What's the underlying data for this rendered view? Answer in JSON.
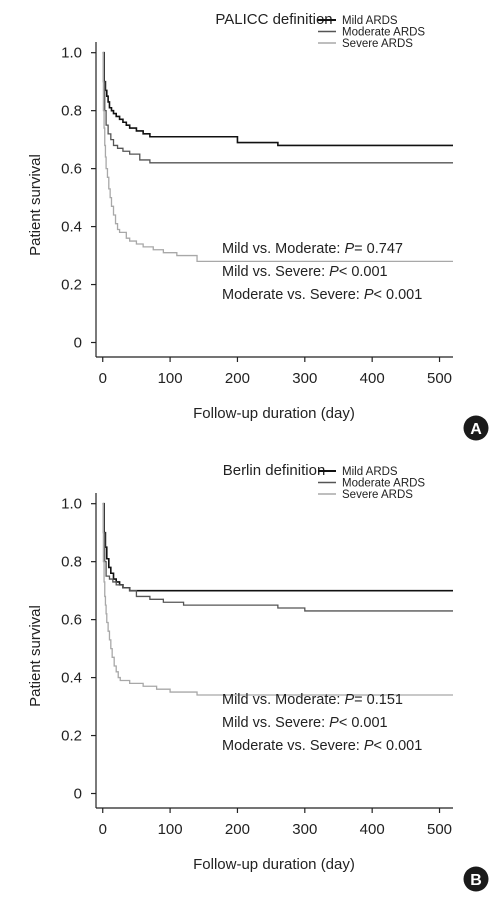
{
  "colors": {
    "mild": "#111111",
    "moderate": "#555555",
    "severe": "#a8a8a8",
    "axis": "#222222",
    "badge": "#1a1a1a"
  },
  "chart_data": [
    {
      "type": "line",
      "panel_label": "A",
      "title": "PALICC definition",
      "xlabel": "Follow-up duration (day)",
      "ylabel": "Patient survival",
      "xlim": [
        -10,
        520
      ],
      "ylim": [
        -0.05,
        1.03
      ],
      "xticks": [
        0,
        100,
        200,
        300,
        400,
        500
      ],
      "yticks": [
        0,
        0.2,
        0.4,
        0.6,
        0.8,
        1.0
      ],
      "xtick_labels": [
        "0",
        "100",
        "200",
        "300",
        "400",
        "500"
      ],
      "ytick_labels": [
        "0",
        "0.2",
        "0.4",
        "0.6",
        "0.8",
        "1.0"
      ],
      "grid": false,
      "legend_position": "top-right",
      "series": [
        {
          "name": "Mild ARDS",
          "color_key": "mild",
          "x": [
            0,
            2,
            4,
            6,
            8,
            10,
            13,
            16,
            20,
            25,
            30,
            35,
            40,
            50,
            60,
            70,
            90,
            120,
            160,
            200,
            260,
            300,
            400,
            520
          ],
          "y": [
            1.0,
            0.9,
            0.87,
            0.85,
            0.83,
            0.81,
            0.8,
            0.79,
            0.78,
            0.77,
            0.76,
            0.75,
            0.74,
            0.73,
            0.72,
            0.71,
            0.71,
            0.71,
            0.71,
            0.69,
            0.68,
            0.68,
            0.68,
            0.68
          ]
        },
        {
          "name": "Moderate ARDS",
          "color_key": "moderate",
          "x": [
            0,
            1,
            3,
            5,
            8,
            12,
            16,
            22,
            30,
            40,
            55,
            70,
            100,
            200,
            300,
            400,
            520
          ],
          "y": [
            1.0,
            0.9,
            0.8,
            0.75,
            0.72,
            0.7,
            0.68,
            0.67,
            0.66,
            0.65,
            0.63,
            0.62,
            0.62,
            0.62,
            0.62,
            0.62,
            0.62
          ]
        },
        {
          "name": "Severe ARDS",
          "color_key": "severe",
          "x": [
            0,
            1,
            2,
            3,
            4,
            5,
            7,
            9,
            11,
            13,
            16,
            19,
            22,
            25,
            30,
            35,
            40,
            50,
            60,
            75,
            90,
            110,
            140,
            200,
            300,
            400,
            520
          ],
          "y": [
            1.0,
            0.8,
            0.74,
            0.68,
            0.64,
            0.6,
            0.57,
            0.53,
            0.5,
            0.47,
            0.44,
            0.41,
            0.39,
            0.38,
            0.38,
            0.36,
            0.35,
            0.34,
            0.33,
            0.32,
            0.31,
            0.3,
            0.28,
            0.28,
            0.28,
            0.28,
            0.28
          ]
        }
      ],
      "annotations": [
        {
          "label": "Mild vs. Moderate: ",
          "p": "P",
          "val": "= 0.747"
        },
        {
          "label": "Mild vs. Severe: ",
          "p": "P",
          "val": "< 0.001"
        },
        {
          "label": "Moderate vs. Severe: ",
          "p": "P",
          "val": "< 0.001"
        }
      ]
    },
    {
      "type": "line",
      "panel_label": "B",
      "title": "Berlin definition",
      "xlabel": "Follow-up duration (day)",
      "ylabel": "Patient survival",
      "xlim": [
        -10,
        520
      ],
      "ylim": [
        -0.05,
        1.03
      ],
      "xticks": [
        0,
        100,
        200,
        300,
        400,
        500
      ],
      "yticks": [
        0,
        0.2,
        0.4,
        0.6,
        0.8,
        1.0
      ],
      "xtick_labels": [
        "0",
        "100",
        "200",
        "300",
        "400",
        "500"
      ],
      "ytick_labels": [
        "0",
        "0.2",
        "0.4",
        "0.6",
        "0.8",
        "1.0"
      ],
      "grid": false,
      "legend_position": "top-right",
      "series": [
        {
          "name": "Mild ARDS",
          "color_key": "mild",
          "x": [
            0,
            2,
            4,
            6,
            9,
            12,
            16,
            20,
            25,
            30,
            40,
            60,
            100,
            200,
            300,
            400,
            520
          ],
          "y": [
            1.0,
            0.9,
            0.85,
            0.81,
            0.78,
            0.76,
            0.74,
            0.73,
            0.72,
            0.71,
            0.7,
            0.7,
            0.7,
            0.7,
            0.7,
            0.7,
            0.7
          ]
        },
        {
          "name": "Moderate ARDS",
          "color_key": "moderate",
          "x": [
            0,
            1,
            3,
            5,
            10,
            15,
            20,
            30,
            40,
            50,
            70,
            90,
            120,
            200,
            260,
            300,
            400,
            520
          ],
          "y": [
            1.0,
            0.9,
            0.8,
            0.75,
            0.74,
            0.73,
            0.72,
            0.71,
            0.7,
            0.68,
            0.67,
            0.66,
            0.65,
            0.65,
            0.64,
            0.63,
            0.63,
            0.63
          ]
        },
        {
          "name": "Severe ARDS",
          "color_key": "severe",
          "x": [
            0,
            1,
            2,
            3,
            4,
            5,
            6,
            8,
            10,
            12,
            14,
            17,
            20,
            23,
            26,
            30,
            40,
            60,
            80,
            100,
            140,
            200,
            300,
            400,
            520
          ],
          "y": [
            1.0,
            0.8,
            0.73,
            0.68,
            0.65,
            0.62,
            0.59,
            0.56,
            0.53,
            0.5,
            0.47,
            0.44,
            0.42,
            0.4,
            0.39,
            0.39,
            0.38,
            0.37,
            0.36,
            0.35,
            0.34,
            0.34,
            0.34,
            0.34,
            0.34
          ]
        }
      ],
      "annotations": [
        {
          "label": "Mild vs. Moderate: ",
          "p": "P",
          "val": "= 0.151"
        },
        {
          "label": "Mild vs. Severe: ",
          "p": "P",
          "val": "< 0.001"
        },
        {
          "label": "Moderate vs. Severe: ",
          "p": "P",
          "val": "< 0.001"
        }
      ]
    }
  ]
}
